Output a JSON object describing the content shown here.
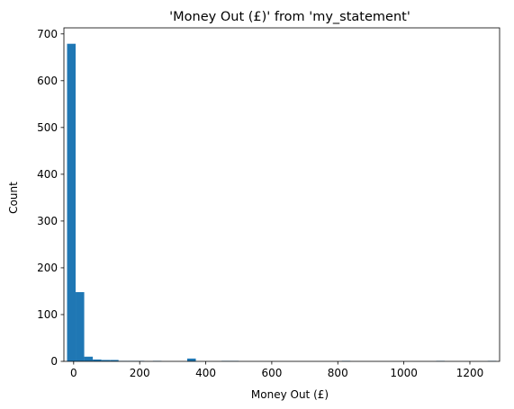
{
  "chart_data": {
    "type": "bar",
    "title": "'Money Out (£)' from 'my_statement'",
    "xlabel": "Money Out (£)",
    "ylabel": "Count",
    "xlim": [
      -29.5,
      1290
    ],
    "ylim": [
      0,
      713
    ],
    "x_ticks": [
      0,
      200,
      400,
      600,
      800,
      1000,
      1200
    ],
    "y_ticks": [
      0,
      100,
      200,
      300,
      400,
      500,
      600,
      700
    ],
    "bar_color": "#1f77b4",
    "grid": false,
    "bins": [
      {
        "x0": -20,
        "x1": 6,
        "count": 679
      },
      {
        "x0": 6,
        "x1": 32,
        "count": 148
      },
      {
        "x0": 32,
        "x1": 58,
        "count": 10
      },
      {
        "x0": 58,
        "x1": 84,
        "count": 4
      },
      {
        "x0": 84,
        "x1": 110,
        "count": 3
      },
      {
        "x0": 110,
        "x1": 136,
        "count": 3
      },
      {
        "x0": 136,
        "x1": 162,
        "count": 1
      },
      {
        "x0": 162,
        "x1": 188,
        "count": 1
      },
      {
        "x0": 188,
        "x1": 214,
        "count": 1
      },
      {
        "x0": 240,
        "x1": 266,
        "count": 1
      },
      {
        "x0": 344,
        "x1": 370,
        "count": 6
      },
      {
        "x0": 448,
        "x1": 474,
        "count": 1
      },
      {
        "x0": 474,
        "x1": 500,
        "count": 1
      },
      {
        "x0": 812,
        "x1": 838,
        "count": 1
      },
      {
        "x0": 1098,
        "x1": 1124,
        "count": 1
      },
      {
        "x0": 1254,
        "x1": 1280,
        "count": 1
      }
    ]
  }
}
